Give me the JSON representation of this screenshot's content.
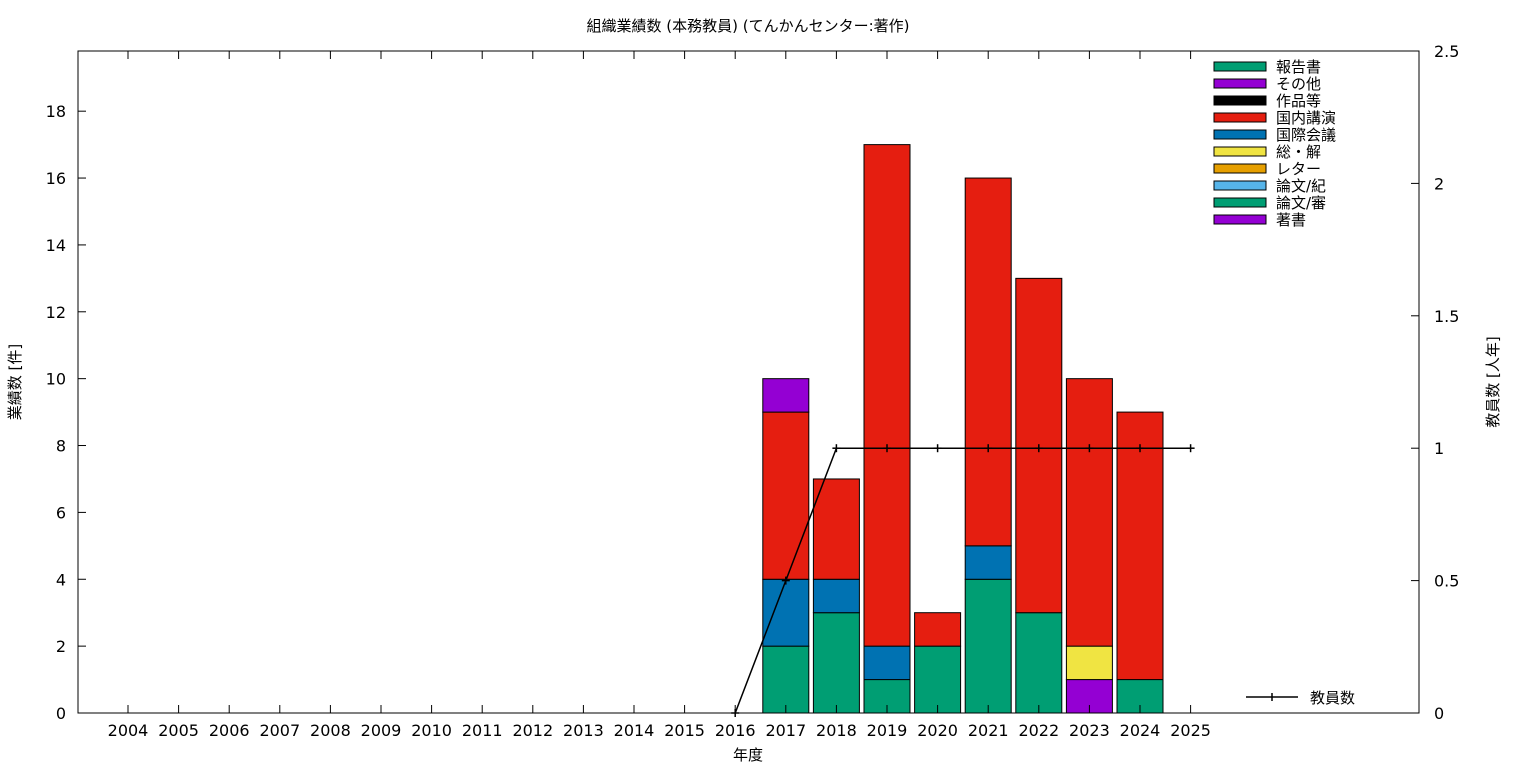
{
  "chart_data": {
    "type": "bar",
    "stacked": true,
    "title": "組織業績数 (本務教員) (てんかんセンター:著作)",
    "xlabel": "年度",
    "ylabel": "業績数 [件]",
    "y2label": "教員数 [人年]",
    "categories": [
      "2004",
      "2005",
      "2006",
      "2007",
      "2008",
      "2009",
      "2010",
      "2011",
      "2012",
      "2013",
      "2014",
      "2015",
      "2016",
      "2017",
      "2018",
      "2019",
      "2020",
      "2021",
      "2022",
      "2023",
      "2024",
      "2025"
    ],
    "ylim": [
      0,
      19.8
    ],
    "y2lim": [
      0,
      2.5
    ],
    "yticks": [
      0,
      2,
      4,
      6,
      8,
      10,
      12,
      14,
      16,
      18
    ],
    "y2ticks": [
      "0",
      "0.5",
      "1",
      "1.5",
      "2",
      "2.5"
    ],
    "grid": false,
    "legend_position": "top-right",
    "series": [
      {
        "name": "論文/審",
        "color": "#009e73",
        "values": [
          0,
          0,
          0,
          0,
          0,
          0,
          0,
          0,
          0,
          0,
          0,
          0,
          0,
          2,
          3,
          1,
          2,
          4,
          3,
          0,
          1,
          0
        ]
      },
      {
        "name": "著書",
        "color": "#9400d3",
        "values": [
          0,
          0,
          0,
          0,
          0,
          0,
          0,
          0,
          0,
          0,
          0,
          0,
          0,
          0,
          0,
          0,
          0,
          0,
          0,
          1,
          0,
          0
        ]
      },
      {
        "name": "総・解",
        "color": "#f0e442",
        "values": [
          0,
          0,
          0,
          0,
          0,
          0,
          0,
          0,
          0,
          0,
          0,
          0,
          0,
          0,
          0,
          0,
          0,
          0,
          0,
          1,
          0,
          0
        ]
      },
      {
        "name": "国際会議",
        "color": "#0072b2",
        "values": [
          0,
          0,
          0,
          0,
          0,
          0,
          0,
          0,
          0,
          0,
          0,
          0,
          0,
          2,
          1,
          1,
          0,
          1,
          0,
          0,
          0,
          0
        ]
      },
      {
        "name": "国内講演",
        "color": "#e51e10",
        "values": [
          0,
          0,
          0,
          0,
          0,
          0,
          0,
          0,
          0,
          0,
          0,
          0,
          0,
          5,
          3,
          15,
          1,
          11,
          10,
          8,
          8,
          0
        ]
      },
      {
        "name": "その他",
        "color": "#9400d3",
        "values": [
          0,
          0,
          0,
          0,
          0,
          0,
          0,
          0,
          0,
          0,
          0,
          0,
          0,
          1,
          0,
          0,
          0,
          0,
          0,
          0,
          0,
          0
        ]
      }
    ],
    "legend": [
      {
        "name": "報告書",
        "color": "#009e73"
      },
      {
        "name": "その他",
        "color": "#9400d3"
      },
      {
        "name": "作品等",
        "color": "#000000"
      },
      {
        "name": "国内講演",
        "color": "#e51e10"
      },
      {
        "name": "国際会議",
        "color": "#0072b2"
      },
      {
        "name": "総・解",
        "color": "#f0e442"
      },
      {
        "name": "レター",
        "color": "#e69f00"
      },
      {
        "name": "論文/紀",
        "color": "#56b4e9"
      },
      {
        "name": "論文/審",
        "color": "#009e73"
      },
      {
        "name": "著書",
        "color": "#9400d3"
      }
    ],
    "line_series": {
      "name": "教員数",
      "axis": "y2",
      "color": "#000000",
      "x": [
        "2016",
        "2017",
        "2018",
        "2019",
        "2020",
        "2021",
        "2022",
        "2023",
        "2024",
        "2025"
      ],
      "values": [
        0,
        0.5,
        1,
        1,
        1,
        1,
        1,
        1,
        1,
        1
      ]
    }
  }
}
